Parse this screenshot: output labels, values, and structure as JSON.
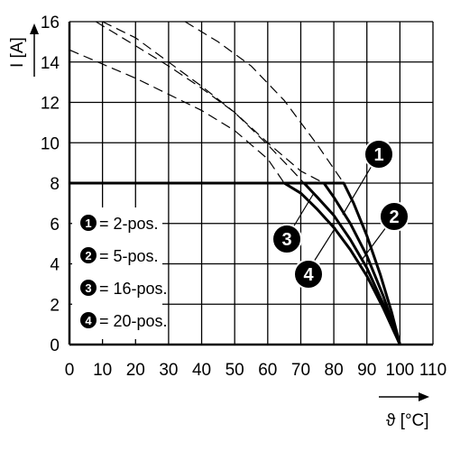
{
  "chart_data": {
    "type": "line",
    "xlabel": "ϑ [°C]",
    "ylabel": "I [A]",
    "xlim": [
      0,
      110
    ],
    "ylim": [
      0,
      16
    ],
    "x_ticks": [
      "0",
      "10",
      "20",
      "30",
      "40",
      "50",
      "60",
      "70",
      "80",
      "90",
      "100",
      "110"
    ],
    "y_ticks": [
      "0",
      "2",
      "4",
      "6",
      "8",
      "10",
      "12",
      "14",
      "16"
    ],
    "grid": true,
    "legend_position": "lower-left",
    "series": [
      {
        "name": "2-pos.",
        "badge": "1",
        "solid": [
          [
            0,
            8
          ],
          [
            83,
            8
          ],
          [
            86,
            7
          ],
          [
            90,
            5.4
          ],
          [
            94,
            3.5
          ],
          [
            97.5,
            1.6
          ],
          [
            100,
            0
          ]
        ],
        "dashed": [
          [
            35,
            16
          ],
          [
            45,
            15
          ],
          [
            55,
            13.8
          ],
          [
            65,
            12.1
          ],
          [
            75,
            9.9
          ],
          [
            83,
            8
          ]
        ]
      },
      {
        "name": "5-pos.",
        "badge": "2",
        "solid": [
          [
            0,
            8
          ],
          [
            77,
            8
          ],
          [
            80,
            7.3
          ],
          [
            85,
            6
          ],
          [
            90,
            4.4
          ],
          [
            95,
            2.4
          ],
          [
            100,
            0
          ]
        ],
        "dashed": [
          [
            10,
            16
          ],
          [
            20,
            15.2
          ],
          [
            30,
            14
          ],
          [
            40,
            12.8
          ],
          [
            50,
            11.5
          ],
          [
            60,
            10
          ],
          [
            70,
            8.6
          ],
          [
            77,
            8
          ]
        ]
      },
      {
        "name": "16-pos.",
        "badge": "3",
        "solid": [
          [
            0,
            8
          ],
          [
            65,
            8
          ],
          [
            70,
            7.5
          ],
          [
            75,
            6.7
          ],
          [
            80,
            5.8
          ],
          [
            85,
            4.7
          ],
          [
            90,
            3.4
          ],
          [
            95,
            1.8
          ],
          [
            100,
            0
          ]
        ],
        "dashed": [
          [
            0,
            14.6
          ],
          [
            10,
            13.9
          ],
          [
            20,
            13.2
          ],
          [
            30,
            12.4
          ],
          [
            40,
            11.6
          ],
          [
            50,
            10.6
          ],
          [
            60,
            9.2
          ],
          [
            65,
            8
          ]
        ]
      },
      {
        "name": "20-pos.",
        "badge": "4",
        "solid": [
          [
            0,
            8
          ],
          [
            71,
            8
          ],
          [
            75,
            7.3
          ],
          [
            80,
            6.4
          ],
          [
            85,
            5.2
          ],
          [
            90,
            3.8
          ],
          [
            95,
            2
          ],
          [
            100,
            0
          ]
        ],
        "dashed": [
          [
            8,
            16
          ],
          [
            20,
            14.8
          ],
          [
            30,
            13.8
          ],
          [
            40,
            12.7
          ],
          [
            50,
            11.5
          ],
          [
            60,
            9.9
          ],
          [
            67,
            8.7
          ],
          [
            71,
            8
          ]
        ]
      }
    ],
    "legend": [
      {
        "badge": "1",
        "label": "= 2-pos."
      },
      {
        "badge": "2",
        "label": "= 5-pos."
      },
      {
        "badge": "3",
        "label": "= 16-pos."
      },
      {
        "badge": "4",
        "label": "= 20-pos."
      }
    ],
    "callouts": [
      {
        "badge": "1",
        "series": 0
      },
      {
        "badge": "2",
        "series": 1
      },
      {
        "badge": "3",
        "series": 2
      },
      {
        "badge": "4",
        "series": 3
      }
    ]
  }
}
